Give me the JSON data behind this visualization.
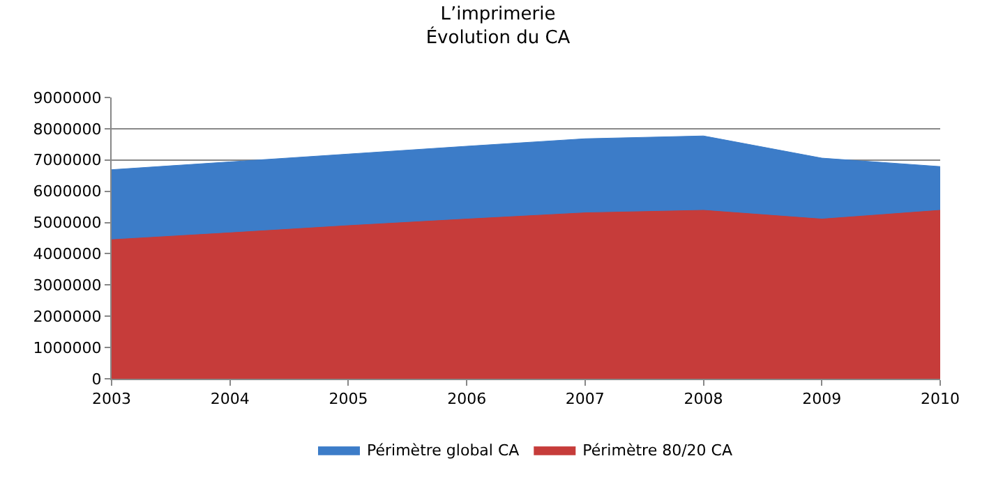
{
  "chart_data": {
    "type": "area",
    "title": "L’imprimerie\nÉvolution du CA",
    "x": [
      2003,
      2004,
      2005,
      2006,
      2007,
      2008,
      2009,
      2010
    ],
    "series": [
      {
        "name": "Périmètre global CA",
        "color": "#3c7cc8",
        "values": [
          6690000,
          6940000,
          7190000,
          7440000,
          7680000,
          7770000,
          7060000,
          6790000
        ]
      },
      {
        "name": "Périmètre 80/20 CA",
        "color": "#c63c3a",
        "values": [
          4450000,
          4670000,
          4900000,
          5110000,
          5310000,
          5390000,
          5110000,
          5390000
        ]
      }
    ],
    "xlim": [
      2003,
      2010
    ],
    "xticks": [
      2003,
      2004,
      2005,
      2006,
      2007,
      2008,
      2009,
      2010
    ],
    "ylim": [
      0,
      9000000
    ],
    "yticks": [
      0,
      1000000,
      2000000,
      3000000,
      4000000,
      5000000,
      6000000,
      7000000,
      8000000,
      9000000
    ],
    "grid": "y",
    "legend": "bottom"
  }
}
